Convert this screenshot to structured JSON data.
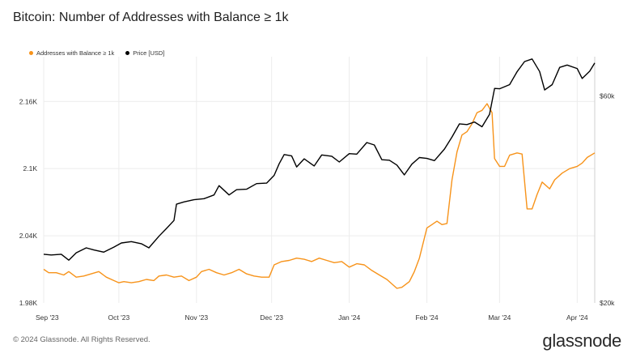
{
  "title": "Bitcoin: Number of Addresses with Balance ≥ 1k",
  "footer": "© 2024 Glassnode. All Rights Reserved.",
  "brand": "glassnode",
  "colors": {
    "addresses": "#f7931a",
    "price": "#000000",
    "grid": "#ececec"
  },
  "chart_data": {
    "type": "line",
    "title": "Bitcoin: Number of Addresses with Balance ≥ 1k",
    "x_range": [
      "2023-09-01",
      "2024-04-08"
    ],
    "x_ticks": [
      "Sep '23",
      "Oct '23",
      "Nov '23",
      "Dec '23",
      "Jan '24",
      "Feb '24",
      "Mar '24",
      "Apr '24"
    ],
    "y_left": {
      "range": [
        1980,
        2200
      ],
      "ticks": [
        1980,
        2040,
        2100,
        2160
      ],
      "tick_labels": [
        "1.98K",
        "2.04K",
        "2.1K",
        "2.16K"
      ]
    },
    "y_right": {
      "scale": "log",
      "range": [
        20000,
        74000
      ],
      "ticks": [
        20000,
        60000
      ],
      "tick_labels": [
        "$20k",
        "$60k"
      ]
    },
    "grid": true,
    "legend_position": "top-left",
    "series": [
      {
        "name": "Addresses with Balance ≥ 1k",
        "axis": "left",
        "points": [
          [
            "2023-09-01",
            2010
          ],
          [
            "2023-09-03",
            2007
          ],
          [
            "2023-09-06",
            2007
          ],
          [
            "2023-09-09",
            2005
          ],
          [
            "2023-09-11",
            2008
          ],
          [
            "2023-09-14",
            2003
          ],
          [
            "2023-09-17",
            2004
          ],
          [
            "2023-09-20",
            2006
          ],
          [
            "2023-09-23",
            2008
          ],
          [
            "2023-09-26",
            2003
          ],
          [
            "2023-09-29",
            2000
          ],
          [
            "2023-10-01",
            1998
          ],
          [
            "2023-10-03",
            1999
          ],
          [
            "2023-10-06",
            1998
          ],
          [
            "2023-10-09",
            1999
          ],
          [
            "2023-10-12",
            2001
          ],
          [
            "2023-10-15",
            2000
          ],
          [
            "2023-10-17",
            2004
          ],
          [
            "2023-10-20",
            2005
          ],
          [
            "2023-10-23",
            2003
          ],
          [
            "2023-10-26",
            2004
          ],
          [
            "2023-10-29",
            2000
          ],
          [
            "2023-11-01",
            2003
          ],
          [
            "2023-11-03",
            2008
          ],
          [
            "2023-11-06",
            2010
          ],
          [
            "2023-11-09",
            2007
          ],
          [
            "2023-11-12",
            2005
          ],
          [
            "2023-11-15",
            2007
          ],
          [
            "2023-11-18",
            2010
          ],
          [
            "2023-11-21",
            2006
          ],
          [
            "2023-11-24",
            2004
          ],
          [
            "2023-11-27",
            2003
          ],
          [
            "2023-11-30",
            2003
          ],
          [
            "2023-12-02",
            2014
          ],
          [
            "2023-12-05",
            2017
          ],
          [
            "2023-12-08",
            2018
          ],
          [
            "2023-12-11",
            2020
          ],
          [
            "2023-12-14",
            2019
          ],
          [
            "2023-12-17",
            2017
          ],
          [
            "2023-12-20",
            2020
          ],
          [
            "2023-12-23",
            2018
          ],
          [
            "2023-12-26",
            2016
          ],
          [
            "2023-12-29",
            2017
          ],
          [
            "2024-01-01",
            2012
          ],
          [
            "2024-01-04",
            2015
          ],
          [
            "2024-01-07",
            2014
          ],
          [
            "2024-01-10",
            2009
          ],
          [
            "2024-01-13",
            2005
          ],
          [
            "2024-01-16",
            2001
          ],
          [
            "2024-01-18",
            1997
          ],
          [
            "2024-01-20",
            1993
          ],
          [
            "2024-01-22",
            1994
          ],
          [
            "2024-01-25",
            1999
          ],
          [
            "2024-01-27",
            2008
          ],
          [
            "2024-01-29",
            2020
          ],
          [
            "2024-02-01",
            2047
          ],
          [
            "2024-02-03",
            2050
          ],
          [
            "2024-02-05",
            2053
          ],
          [
            "2024-02-07",
            2050
          ],
          [
            "2024-02-09",
            2051
          ],
          [
            "2024-02-11",
            2090
          ],
          [
            "2024-02-13",
            2115
          ],
          [
            "2024-02-15",
            2130
          ],
          [
            "2024-02-17",
            2133
          ],
          [
            "2024-02-19",
            2140
          ],
          [
            "2024-02-21",
            2150
          ],
          [
            "2024-02-23",
            2152
          ],
          [
            "2024-02-25",
            2158
          ],
          [
            "2024-02-27",
            2150
          ],
          [
            "2024-02-28",
            2109
          ],
          [
            "2024-03-01",
            2102
          ],
          [
            "2024-03-03",
            2102
          ],
          [
            "2024-03-05",
            2112
          ],
          [
            "2024-03-08",
            2114
          ],
          [
            "2024-03-10",
            2113
          ],
          [
            "2024-03-12",
            2064
          ],
          [
            "2024-03-14",
            2064
          ],
          [
            "2024-03-16",
            2077
          ],
          [
            "2024-03-18",
            2088
          ],
          [
            "2024-03-21",
            2082
          ],
          [
            "2024-03-23",
            2090
          ],
          [
            "2024-03-26",
            2096
          ],
          [
            "2024-03-29",
            2100
          ],
          [
            "2024-04-01",
            2102
          ],
          [
            "2024-04-03",
            2105
          ],
          [
            "2024-04-05",
            2110
          ],
          [
            "2024-04-08",
            2114
          ]
        ]
      },
      {
        "name": "Price [USD]",
        "axis": "right",
        "points": [
          [
            "2023-09-01",
            25900
          ],
          [
            "2023-09-04",
            25800
          ],
          [
            "2023-09-08",
            25900
          ],
          [
            "2023-09-11",
            25100
          ],
          [
            "2023-09-14",
            26100
          ],
          [
            "2023-09-18",
            26800
          ],
          [
            "2023-09-21",
            26500
          ],
          [
            "2023-09-25",
            26200
          ],
          [
            "2023-09-29",
            26900
          ],
          [
            "2023-10-02",
            27500
          ],
          [
            "2023-10-06",
            27700
          ],
          [
            "2023-10-10",
            27400
          ],
          [
            "2023-10-13",
            26800
          ],
          [
            "2023-10-17",
            28500
          ],
          [
            "2023-10-20",
            29700
          ],
          [
            "2023-10-23",
            31000
          ],
          [
            "2023-10-24",
            33800
          ],
          [
            "2023-10-27",
            34200
          ],
          [
            "2023-10-31",
            34600
          ],
          [
            "2023-11-04",
            34800
          ],
          [
            "2023-11-08",
            35500
          ],
          [
            "2023-11-10",
            37300
          ],
          [
            "2023-11-14",
            35500
          ],
          [
            "2023-11-17",
            36500
          ],
          [
            "2023-11-21",
            36600
          ],
          [
            "2023-11-25",
            37700
          ],
          [
            "2023-11-29",
            37800
          ],
          [
            "2023-12-02",
            39400
          ],
          [
            "2023-12-04",
            41900
          ],
          [
            "2023-12-06",
            44000
          ],
          [
            "2023-12-09",
            43700
          ],
          [
            "2023-12-11",
            41200
          ],
          [
            "2023-12-14",
            43000
          ],
          [
            "2023-12-18",
            41400
          ],
          [
            "2023-12-21",
            43900
          ],
          [
            "2023-12-25",
            43600
          ],
          [
            "2023-12-28",
            42300
          ],
          [
            "2024-01-01",
            44200
          ],
          [
            "2024-01-04",
            44100
          ],
          [
            "2024-01-08",
            46900
          ],
          [
            "2024-01-11",
            46300
          ],
          [
            "2024-01-14",
            42800
          ],
          [
            "2024-01-17",
            42700
          ],
          [
            "2024-01-20",
            41600
          ],
          [
            "2024-01-23",
            39500
          ],
          [
            "2024-01-26",
            41800
          ],
          [
            "2024-01-29",
            43300
          ],
          [
            "2024-02-01",
            43100
          ],
          [
            "2024-02-04",
            42600
          ],
          [
            "2024-02-08",
            45300
          ],
          [
            "2024-02-11",
            48300
          ],
          [
            "2024-02-14",
            51800
          ],
          [
            "2024-02-17",
            51600
          ],
          [
            "2024-02-20",
            52300
          ],
          [
            "2024-02-23",
            51000
          ],
          [
            "2024-02-26",
            54500
          ],
          [
            "2024-02-28",
            62500
          ],
          [
            "2024-03-01",
            62400
          ],
          [
            "2024-03-05",
            63800
          ],
          [
            "2024-03-08",
            68300
          ],
          [
            "2024-03-11",
            72100
          ],
          [
            "2024-03-14",
            73100
          ],
          [
            "2024-03-17",
            68400
          ],
          [
            "2024-03-19",
            62000
          ],
          [
            "2024-03-22",
            63800
          ],
          [
            "2024-03-25",
            69900
          ],
          [
            "2024-03-28",
            70800
          ],
          [
            "2024-04-01",
            69500
          ],
          [
            "2024-04-03",
            65900
          ],
          [
            "2024-04-06",
            68500
          ],
          [
            "2024-04-08",
            71600
          ]
        ]
      }
    ]
  }
}
